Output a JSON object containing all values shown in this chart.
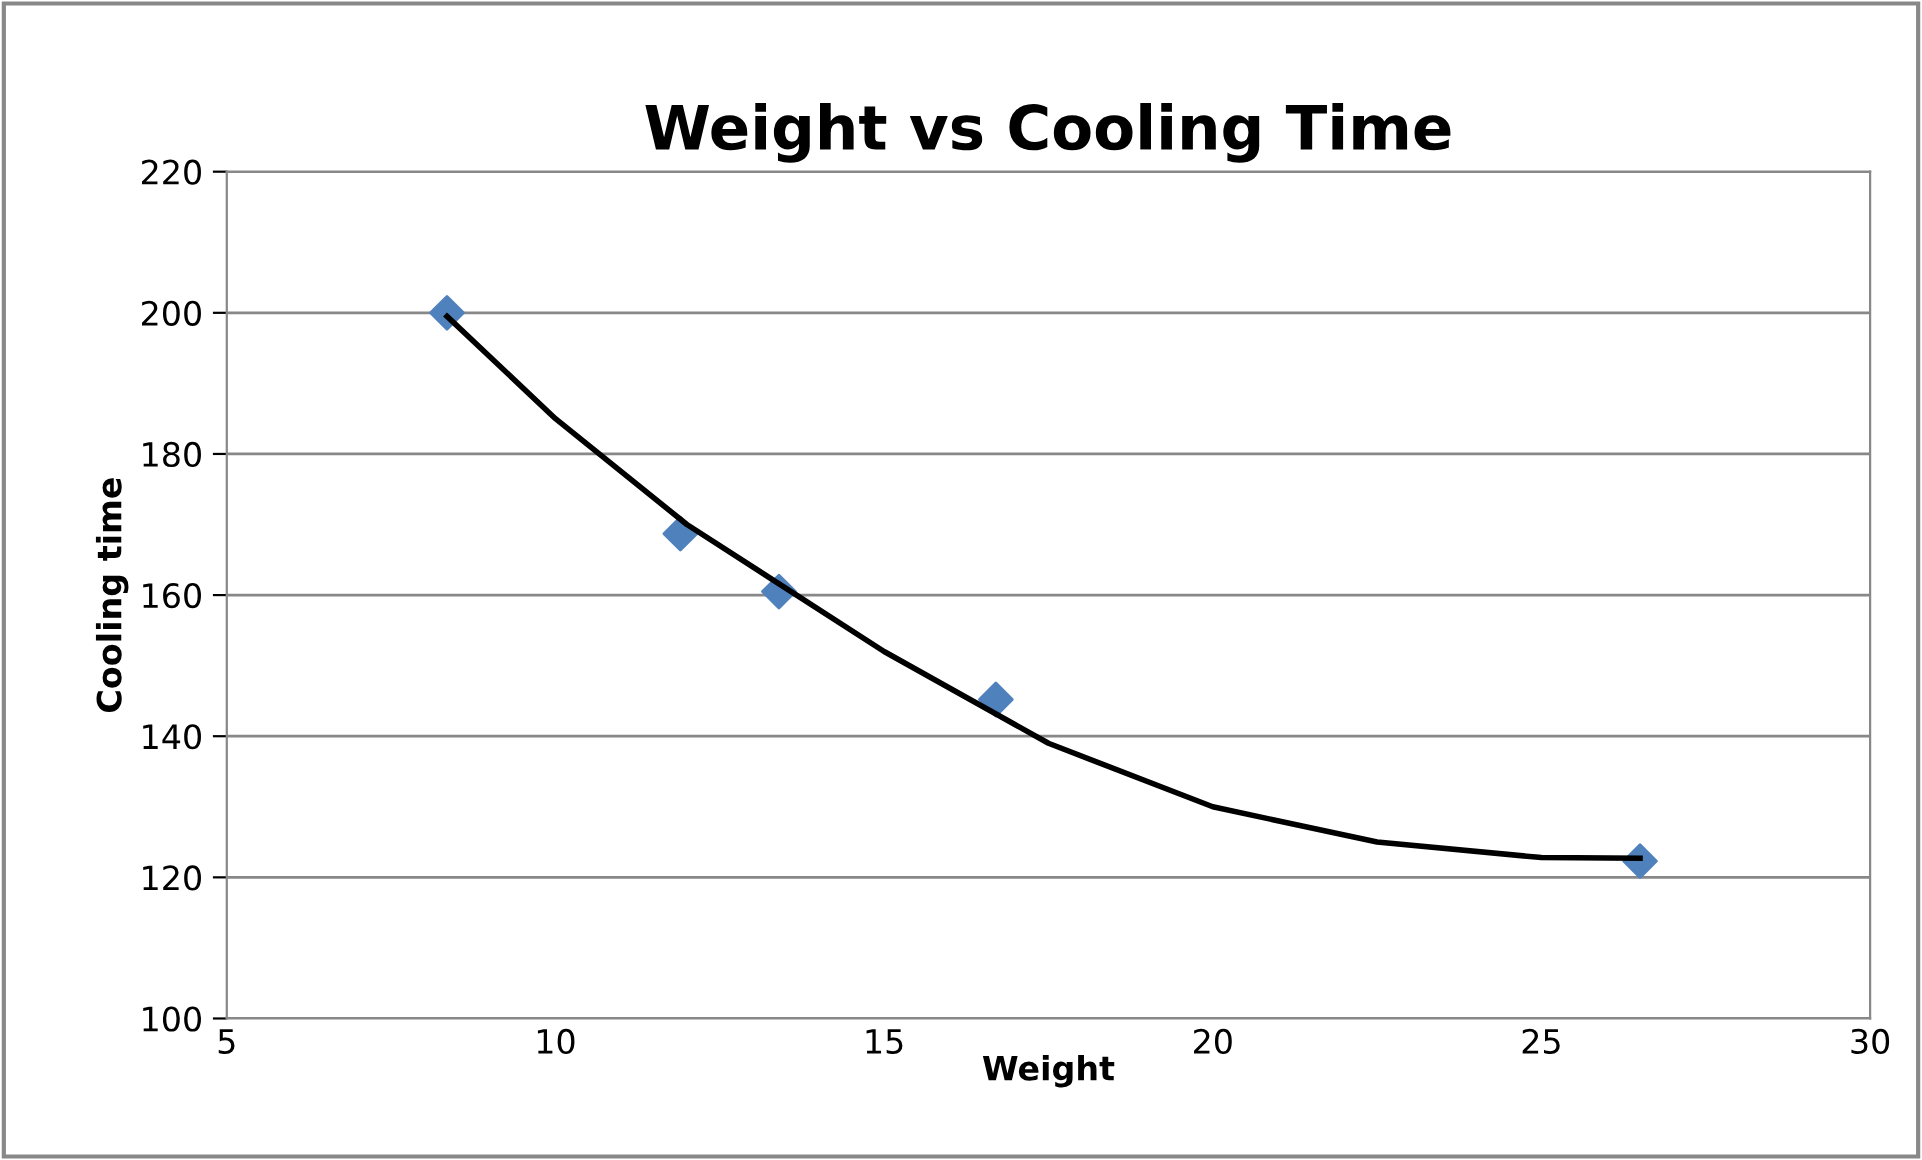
{
  "chart_data": {
    "type": "scatter",
    "title": "Weight vs Cooling Time",
    "xlabel": "Weight",
    "ylabel": "Cooling time",
    "xlim": [
      5,
      30
    ],
    "xticks": [
      5,
      10,
      15,
      20,
      25,
      30
    ],
    "ylim": [
      100,
      220
    ],
    "yticks": [
      100,
      120,
      140,
      160,
      180,
      200,
      220
    ],
    "grid": "y",
    "legend": false,
    "series": [
      {
        "marker": "diamond",
        "color": "#4f81bd",
        "x": [
          8.35,
          11.9,
          13.4,
          16.7,
          26.5
        ],
        "values": [
          200,
          168.7,
          160.5,
          145.2,
          122.3
        ]
      },
      {
        "type": "line",
        "marker": "none",
        "color": "#000000",
        "x": [
          8.35,
          10,
          12,
          15,
          17.5,
          20,
          22.5,
          25,
          26.5
        ],
        "values": [
          199.5,
          185,
          170,
          152,
          139,
          130,
          125,
          122.8,
          122.7
        ]
      }
    ]
  }
}
